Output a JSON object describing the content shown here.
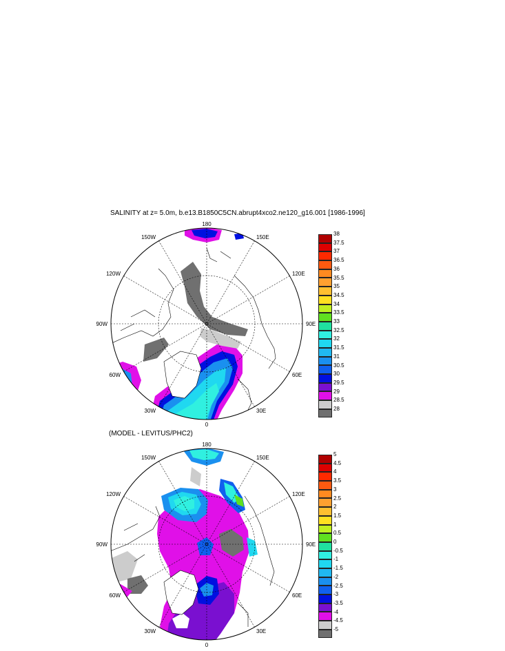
{
  "figure": {
    "title": "SALINITY at z=   5.0m, b.e13.B1850C5CN.abrupt4xco2.ne120_g16.001 [1986-1996]",
    "subtitle": "(MODEL - LEVITUS/PHC2)"
  },
  "maps": [
    {
      "longitude_labels": {
        "top": "180",
        "top_left": "150W",
        "top_right": "150E",
        "upper_left": "120W",
        "upper_right": "120E",
        "left": "90W",
        "right": "90E",
        "lower_left": "60W",
        "lower_right": "60E",
        "bottom_left": "30W",
        "bottom_right": "30E",
        "bottom": "0"
      },
      "colorbar": {
        "labels": [
          "38",
          "37.5",
          "37",
          "36.5",
          "36",
          "35.5",
          "35",
          "34.5",
          "34",
          "33.5",
          "33",
          "32.5",
          "32",
          "31.5",
          "31",
          "30.5",
          "30",
          "29.5",
          "29",
          "28.5",
          "28"
        ],
        "colors": [
          "#b00000",
          "#dd0000",
          "#ff2a00",
          "#ff5a10",
          "#ff8a20",
          "#ffa030",
          "#ffbf30",
          "#ffe020",
          "#c0f020",
          "#60e020",
          "#20e0a0",
          "#30f0e0",
          "#20d8f0",
          "#20b8f0",
          "#1a90ef",
          "#1060ee",
          "#0010e0",
          "#7a10d0",
          "#e010e8",
          "#cccccc",
          "#707070"
        ]
      }
    },
    {
      "longitude_labels": {
        "top": "180",
        "top_left": "150W",
        "top_right": "150E",
        "upper_left": "120W",
        "upper_right": "120E",
        "left": "90W",
        "right": "90E",
        "lower_left": "60W",
        "lower_right": "60E",
        "bottom_left": "30W",
        "bottom_right": "30E",
        "bottom": "0"
      },
      "colorbar": {
        "labels": [
          "5",
          "4.5",
          "4",
          "3.5",
          "3",
          "2.5",
          "2",
          "1.5",
          "1",
          "0.5",
          "0",
          "-0.5",
          "-1",
          "-1.5",
          "-2",
          "-2.5",
          "-3",
          "-3.5",
          "-4",
          "-4.5",
          "-5"
        ],
        "colors": [
          "#b00000",
          "#dd0000",
          "#ff2a00",
          "#ff5a10",
          "#ff8a20",
          "#ffa030",
          "#ffbf30",
          "#ffe020",
          "#c0f020",
          "#60e020",
          "#20e0a0",
          "#30f0e0",
          "#20d8f0",
          "#20b8f0",
          "#1a90ef",
          "#1060ee",
          "#0010e0",
          "#7a10d0",
          "#e010e8",
          "#cccccc",
          "#707070"
        ]
      }
    }
  ]
}
